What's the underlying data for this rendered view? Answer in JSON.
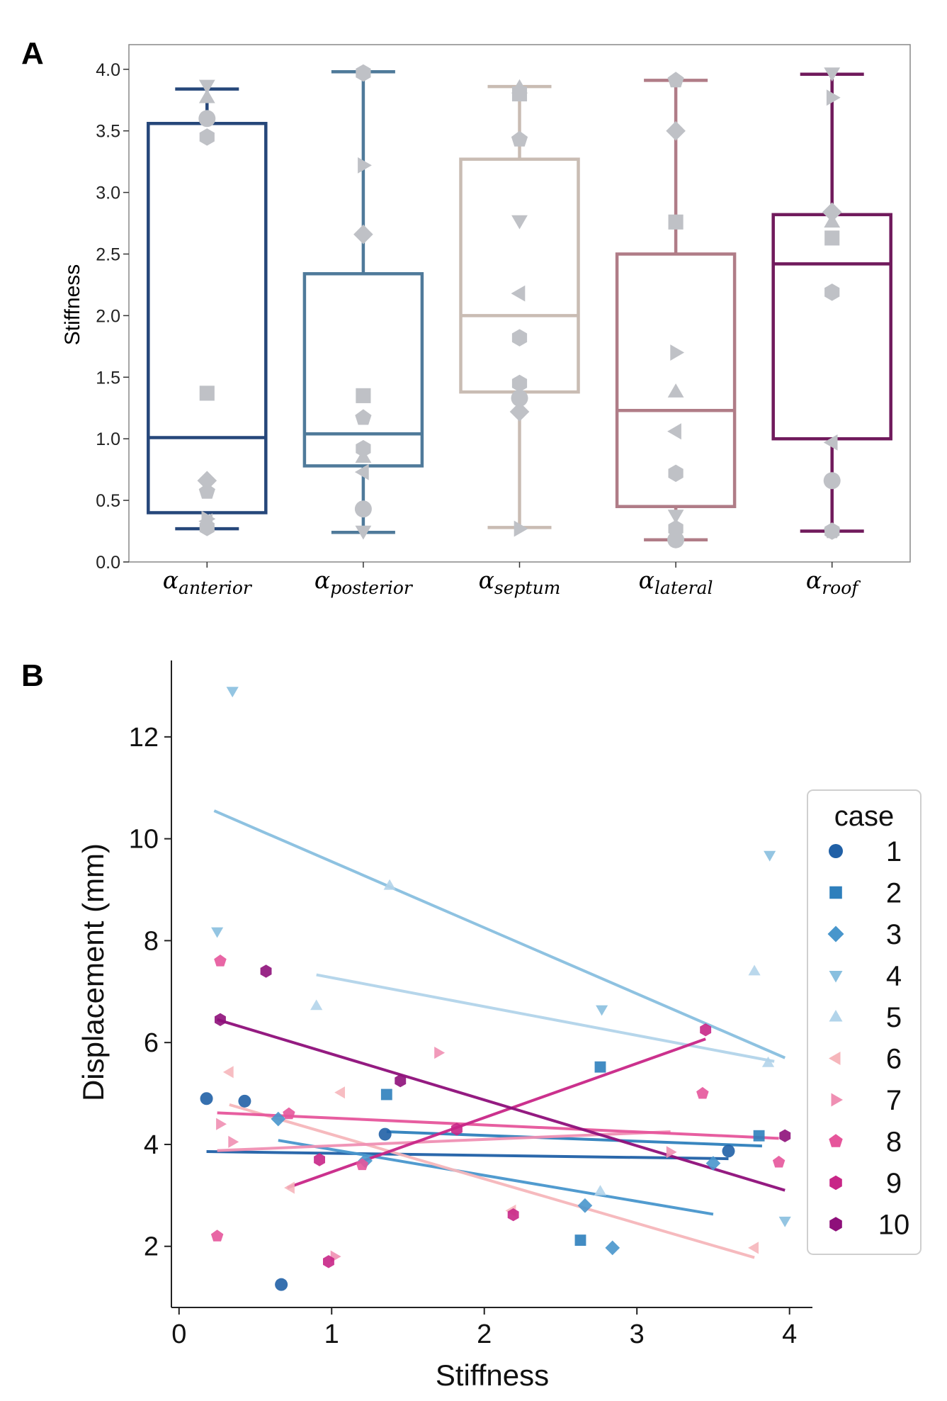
{
  "figure_labels": {
    "panel_a": "A",
    "panel_b": "B"
  },
  "chart_data": [
    {
      "type": "box",
      "panel": "A",
      "ylabel": "Stiffness",
      "ylim": [
        0,
        4.2
      ],
      "yticks": [
        0.0,
        0.5,
        1.0,
        1.5,
        2.0,
        2.5,
        3.0,
        3.5,
        4.0
      ],
      "ytick_labels": [
        "0.0",
        "0.5",
        "1.0",
        "1.5",
        "2.0",
        "2.5",
        "3.0",
        "3.5",
        "4.0"
      ],
      "boxes": [
        {
          "label_main": "α",
          "label_sub": "anterior",
          "color": "#26477a",
          "whisker_low": 0.27,
          "q1": 0.4,
          "median": 1.01,
          "q3": 3.56,
          "whisker_high": 3.84,
          "points": [
            {
              "case": 1,
              "value": 3.6
            },
            {
              "case": 2,
              "value": 1.37
            },
            {
              "case": 3,
              "value": 0.66
            },
            {
              "case": 4,
              "value": 3.87
            },
            {
              "case": 5,
              "value": 3.77
            },
            {
              "case": 6,
              "value": 0.33
            },
            {
              "case": 7,
              "value": 0.35
            },
            {
              "case": 8,
              "value": 0.57
            },
            {
              "case": 9,
              "value": 0.28
            },
            {
              "case": 10,
              "value": 3.45
            }
          ]
        },
        {
          "label_main": "α",
          "label_sub": "posterior",
          "color": "#4f7a9a",
          "whisker_low": 0.24,
          "q1": 0.78,
          "median": 1.04,
          "q3": 2.34,
          "whisker_high": 3.98,
          "points": [
            {
              "case": 1,
              "value": 0.43
            },
            {
              "case": 2,
              "value": 1.35
            },
            {
              "case": 3,
              "value": 2.66
            },
            {
              "case": 4,
              "value": 0.25
            },
            {
              "case": 5,
              "value": 0.85
            },
            {
              "case": 6,
              "value": 0.73
            },
            {
              "case": 7,
              "value": 3.22
            },
            {
              "case": 8,
              "value": 1.17
            },
            {
              "case": 9,
              "value": 0.92
            },
            {
              "case": 10,
              "value": 3.97
            }
          ]
        },
        {
          "label_main": "α",
          "label_sub": "septum",
          "color": "#c9bcb3",
          "whisker_low": 0.28,
          "q1": 1.38,
          "median": 2.0,
          "q3": 3.27,
          "whisker_high": 3.86,
          "points": [
            {
              "case": 1,
              "value": 1.33
            },
            {
              "case": 2,
              "value": 3.8
            },
            {
              "case": 3,
              "value": 1.22
            },
            {
              "case": 4,
              "value": 2.77
            },
            {
              "case": 5,
              "value": 3.85
            },
            {
              "case": 6,
              "value": 2.18
            },
            {
              "case": 7,
              "value": 0.27
            },
            {
              "case": 8,
              "value": 3.43
            },
            {
              "case": 9,
              "value": 1.82
            },
            {
              "case": 10,
              "value": 1.45
            }
          ]
        },
        {
          "label_main": "α",
          "label_sub": "lateral",
          "color": "#b07c87",
          "whisker_low": 0.18,
          "q1": 0.45,
          "median": 1.23,
          "q3": 2.5,
          "whisker_high": 3.91,
          "points": [
            {
              "case": 1,
              "value": 0.18
            },
            {
              "case": 2,
              "value": 2.76
            },
            {
              "case": 3,
              "value": 3.5
            },
            {
              "case": 4,
              "value": 0.38
            },
            {
              "case": 5,
              "value": 1.38
            },
            {
              "case": 6,
              "value": 1.06
            },
            {
              "case": 7,
              "value": 1.7
            },
            {
              "case": 8,
              "value": 3.91
            },
            {
              "case": 9,
              "value": 0.72
            },
            {
              "case": 10,
              "value": 0.27
            }
          ]
        },
        {
          "label_main": "α",
          "label_sub": "roof",
          "color": "#701a5c",
          "whisker_low": 0.25,
          "q1": 1.0,
          "median": 2.42,
          "q3": 2.82,
          "whisker_high": 3.96,
          "points": [
            {
              "case": 1,
              "value": 0.66
            },
            {
              "case": 2,
              "value": 2.63
            },
            {
              "case": 3,
              "value": 2.84
            },
            {
              "case": 4,
              "value": 3.97
            },
            {
              "case": 5,
              "value": 2.76
            },
            {
              "case": 6,
              "value": 0.97
            },
            {
              "case": 7,
              "value": 3.77
            },
            {
              "case": 8,
              "value": 0.25
            },
            {
              "case": 9,
              "value": 2.19
            },
            {
              "case": 10,
              "value": 0.25
            }
          ]
        }
      ]
    },
    {
      "type": "scatter",
      "panel": "B",
      "xlabel": "Stiffness",
      "ylabel": "Displacement (mm)",
      "xlim": [
        -0.05,
        4.15
      ],
      "ylim": [
        0.8,
        13.5
      ],
      "xticks": [
        0,
        1,
        2,
        3,
        4
      ],
      "xtick_labels": [
        "0",
        "1",
        "2",
        "3",
        "4"
      ],
      "yticks": [
        2,
        4,
        6,
        8,
        10,
        12
      ],
      "ytick_labels": [
        "2",
        "4",
        "6",
        "8",
        "10",
        "12"
      ],
      "legend_title": "case",
      "legend_position": "right",
      "series": [
        {
          "name": "1",
          "marker": "circle",
          "color": "#2060a6",
          "points": [
            [
              0.18,
              4.9
            ],
            [
              0.43,
              4.85
            ],
            [
              0.67,
              1.25
            ],
            [
              1.35,
              4.2
            ],
            [
              3.6,
              3.87
            ]
          ],
          "fit": [
            [
              0.18,
              3.86
            ],
            [
              3.6,
              3.72
            ]
          ]
        },
        {
          "name": "2",
          "marker": "square",
          "color": "#2e7fbc",
          "points": [
            [
              1.36,
              4.98
            ],
            [
              2.63,
              2.12
            ],
            [
              2.76,
              5.52
            ],
            [
              3.8,
              4.17
            ]
          ],
          "fit": [
            [
              1.36,
              4.25
            ],
            [
              3.82,
              3.97
            ]
          ]
        },
        {
          "name": "3",
          "marker": "diamond",
          "color": "#4896cc",
          "points": [
            [
              0.65,
              4.5
            ],
            [
              1.22,
              3.68
            ],
            [
              2.66,
              2.8
            ],
            [
              2.84,
              1.97
            ],
            [
              3.5,
              3.63
            ]
          ],
          "fit": [
            [
              0.65,
              4.08
            ],
            [
              3.5,
              2.63
            ]
          ]
        },
        {
          "name": "4",
          "marker": "triangle-down",
          "color": "#88bfdf",
          "points": [
            [
              0.25,
              8.18
            ],
            [
              0.35,
              12.9
            ],
            [
              2.77,
              6.65
            ],
            [
              3.87,
              9.68
            ],
            [
              3.97,
              2.5
            ]
          ],
          "fit": [
            [
              0.23,
              10.55
            ],
            [
              3.97,
              5.7
            ]
          ]
        },
        {
          "name": "5",
          "marker": "triangle-up",
          "color": "#b2d4ea",
          "points": [
            [
              0.9,
              6.72
            ],
            [
              1.38,
              9.08
            ],
            [
              2.76,
              3.08
            ],
            [
              3.77,
              7.4
            ],
            [
              3.86,
              5.6
            ]
          ],
          "fit": [
            [
              0.9,
              7.33
            ],
            [
              3.9,
              5.63
            ]
          ]
        },
        {
          "name": "6",
          "marker": "triangle-left",
          "color": "#f6b6bb",
          "points": [
            [
              0.33,
              5.42
            ],
            [
              0.73,
              3.15
            ],
            [
              1.06,
              5.02
            ],
            [
              2.18,
              2.7
            ],
            [
              3.77,
              1.97
            ]
          ],
          "fit": [
            [
              0.33,
              4.78
            ],
            [
              3.77,
              1.78
            ]
          ]
        },
        {
          "name": "7",
          "marker": "triangle-right",
          "color": "#ef8fb3",
          "points": [
            [
              0.27,
              4.4
            ],
            [
              0.35,
              4.05
            ],
            [
              1.02,
              1.8
            ],
            [
              1.7,
              5.8
            ],
            [
              3.22,
              3.85
            ]
          ],
          "fit": [
            [
              0.25,
              3.88
            ],
            [
              3.22,
              4.25
            ]
          ]
        },
        {
          "name": "8",
          "marker": "pentagon",
          "color": "#e6559b",
          "points": [
            [
              0.25,
              2.2
            ],
            [
              0.27,
              7.6
            ],
            [
              0.72,
              4.6
            ],
            [
              1.2,
              3.6
            ],
            [
              3.43,
              5.0
            ],
            [
              3.93,
              3.65
            ]
          ],
          "fit": [
            [
              0.25,
              4.62
            ],
            [
              3.93,
              4.12
            ]
          ]
        },
        {
          "name": "9",
          "marker": "hexagon",
          "color": "#c82687",
          "points": [
            [
              0.92,
              3.7
            ],
            [
              0.98,
              1.7
            ],
            [
              1.82,
              4.3
            ],
            [
              2.19,
              2.62
            ],
            [
              3.45,
              6.25
            ]
          ],
          "fit": [
            [
              0.71,
              3.15
            ],
            [
              3.45,
              6.07
            ]
          ]
        },
        {
          "name": "10",
          "marker": "hexagon",
          "color": "#8e0f7a",
          "points": [
            [
              0.27,
              6.45
            ],
            [
              0.57,
              7.4
            ],
            [
              1.45,
              5.25
            ],
            [
              3.97,
              4.17
            ]
          ],
          "fit": [
            [
              0.25,
              6.45
            ],
            [
              3.97,
              3.1
            ]
          ]
        }
      ]
    }
  ]
}
